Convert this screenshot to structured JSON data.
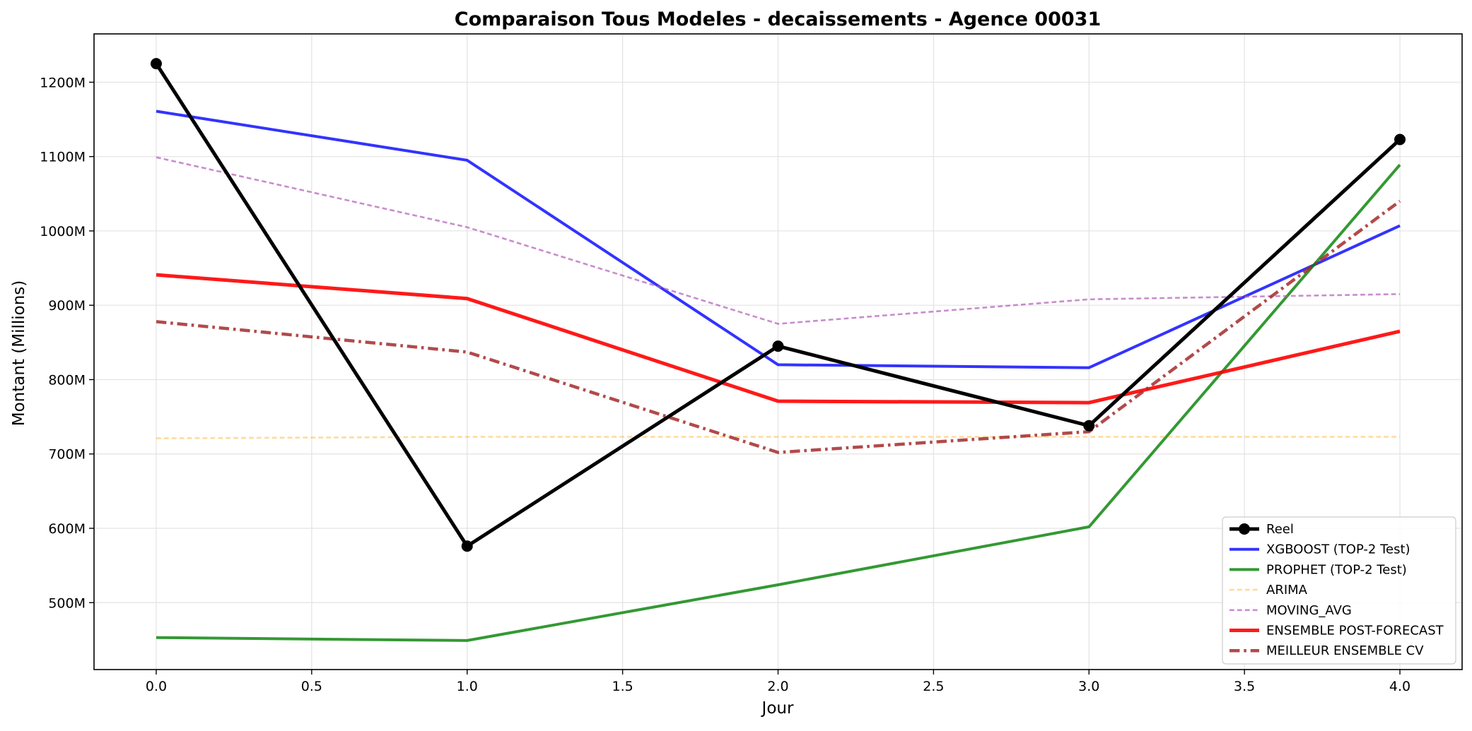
{
  "chart_data": {
    "type": "line",
    "title": "Comparaison Tous Modeles - decaissements - Agence 00031",
    "xlabel": "Jour",
    "ylabel": "Montant (Millions)",
    "x": [
      0,
      1,
      2,
      3,
      4
    ],
    "xlim": [
      -0.2,
      4.2
    ],
    "ylim": [
      410,
      1265
    ],
    "x_ticks": [
      "0.0",
      "0.5",
      "1.0",
      "1.5",
      "2.0",
      "2.5",
      "3.0",
      "3.5",
      "4.0"
    ],
    "y_ticks": [
      "500M",
      "600M",
      "700M",
      "800M",
      "900M",
      "1000M",
      "1100M",
      "1200M"
    ],
    "grid": true,
    "legend_position": "bottom-right",
    "series": [
      {
        "name": "Reel",
        "values": [
          1225,
          576,
          845,
          738,
          1123
        ],
        "color": "#000000",
        "style": "solid",
        "width": 5,
        "markers": true,
        "alpha": 1
      },
      {
        "name": "XGBOOST (TOP-2 Test)",
        "values": [
          1161,
          1095,
          820,
          816,
          1007
        ],
        "color": "#0000ff",
        "style": "solid",
        "width": 4,
        "markers": false,
        "alpha": 0.8
      },
      {
        "name": "PROPHET (TOP-2 Test)",
        "values": [
          453,
          449,
          524,
          602,
          1089
        ],
        "color": "#008000",
        "style": "solid",
        "width": 4,
        "markers": false,
        "alpha": 0.8
      },
      {
        "name": "ARIMA",
        "values": [
          721,
          723,
          723,
          723,
          723
        ],
        "color": "#ffa500",
        "style": "dashed",
        "width": 2.6,
        "markers": false,
        "alpha": 0.4
      },
      {
        "name": "MOVING_AVG",
        "values": [
          1099,
          1005,
          875,
          908,
          915
        ],
        "color": "#b05cb8",
        "style": "dashed",
        "width": 2.6,
        "markers": false,
        "alpha": 0.7
      },
      {
        "name": "ENSEMBLE POST-FORECAST",
        "values": [
          941,
          909,
          771,
          769,
          865
        ],
        "color": "#ff0000",
        "style": "solid",
        "width": 5,
        "markers": false,
        "alpha": 0.9
      },
      {
        "name": "MEILLEUR ENSEMBLE CV",
        "values": [
          878,
          837,
          702,
          730,
          1040
        ],
        "color": "#a52a2a",
        "style": "dashdot",
        "width": 4.5,
        "markers": false,
        "alpha": 0.85
      }
    ]
  }
}
